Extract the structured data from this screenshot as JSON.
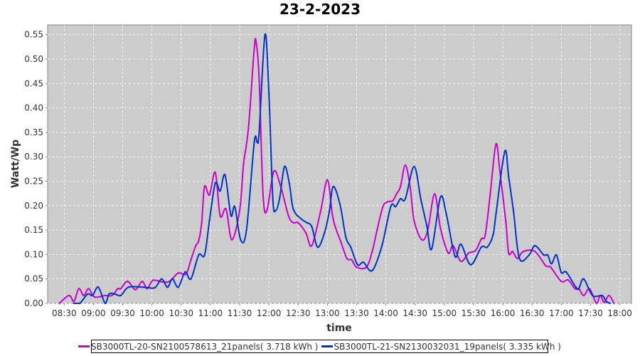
{
  "chart_data": {
    "type": "line",
    "title": "23-2-2023",
    "xlabel": "time",
    "ylabel": "Watt/Wp",
    "xlim": [
      "08:13",
      "18:12"
    ],
    "ylim": [
      0,
      0.57
    ],
    "grid": true,
    "legend_position": "bottom",
    "background": "#cccccc",
    "x_ticks": [
      "08:30",
      "09:00",
      "09:30",
      "10:00",
      "10:30",
      "11:00",
      "11:30",
      "12:00",
      "12:30",
      "13:00",
      "13:30",
      "14:00",
      "14:30",
      "15:00",
      "15:30",
      "16:00",
      "16:30",
      "17:00",
      "17:30",
      "18:00"
    ],
    "y_ticks": [
      "0.00",
      "0.05",
      "0.10",
      "0.15",
      "0.20",
      "0.25",
      "0.30",
      "0.35",
      "0.40",
      "0.45",
      "0.50",
      "0.55"
    ],
    "series": [
      {
        "name": "SB3000TL-20-SN2100578613_21panels( 3.718 kWh )",
        "color": "#cc00cc",
        "points": [
          [
            "08:25",
            0.0
          ],
          [
            "08:35",
            0.016
          ],
          [
            "08:40",
            0.004
          ],
          [
            "08:45",
            0.03
          ],
          [
            "08:50",
            0.016
          ],
          [
            "08:55",
            0.03
          ],
          [
            "09:01",
            0.013
          ],
          [
            "09:12",
            0.016
          ],
          [
            "09:19",
            0.016
          ],
          [
            "09:25",
            0.03
          ],
          [
            "09:28",
            0.03
          ],
          [
            "09:35",
            0.045
          ],
          [
            "09:43",
            0.028
          ],
          [
            "09:50",
            0.045
          ],
          [
            "09:55",
            0.03
          ],
          [
            "10:01",
            0.047
          ],
          [
            "10:10",
            0.044
          ],
          [
            "10:18",
            0.045
          ],
          [
            "10:27",
            0.062
          ],
          [
            "10:35",
            0.06
          ],
          [
            "10:40",
            0.089
          ],
          [
            "10:45",
            0.118
          ],
          [
            "10:48",
            0.128
          ],
          [
            "10:51",
            0.164
          ],
          [
            "10:54",
            0.239
          ],
          [
            "10:59",
            0.222
          ],
          [
            "11:05",
            0.268
          ],
          [
            "11:10",
            0.179
          ],
          [
            "11:16",
            0.193
          ],
          [
            "11:22",
            0.13
          ],
          [
            "11:30",
            0.19
          ],
          [
            "11:34",
            0.285
          ],
          [
            "11:39",
            0.358
          ],
          [
            "11:45",
            0.522
          ],
          [
            "11:47",
            0.533
          ],
          [
            "11:50",
            0.46
          ],
          [
            "11:54",
            0.223
          ],
          [
            "11:58",
            0.19
          ],
          [
            "12:05",
            0.27
          ],
          [
            "12:12",
            0.24
          ],
          [
            "12:20",
            0.18
          ],
          [
            "12:25",
            0.165
          ],
          [
            "12:30",
            0.165
          ],
          [
            "12:38",
            0.144
          ],
          [
            "12:44",
            0.118
          ],
          [
            "12:53",
            0.188
          ],
          [
            "13:00",
            0.253
          ],
          [
            "13:05",
            0.183
          ],
          [
            "13:08",
            0.157
          ],
          [
            "13:14",
            0.125
          ],
          [
            "13:20",
            0.092
          ],
          [
            "13:25",
            0.089
          ],
          [
            "13:30",
            0.074
          ],
          [
            "13:40",
            0.074
          ],
          [
            "13:46",
            0.106
          ],
          [
            "13:51",
            0.15
          ],
          [
            "13:57",
            0.198
          ],
          [
            "14:02",
            0.208
          ],
          [
            "14:07",
            0.21
          ],
          [
            "14:11",
            0.224
          ],
          [
            "14:15",
            0.239
          ],
          [
            "14:20",
            0.283
          ],
          [
            "14:25",
            0.237
          ],
          [
            "14:29",
            0.169
          ],
          [
            "14:37",
            0.13
          ],
          [
            "14:43",
            0.15
          ],
          [
            "14:50",
            0.224
          ],
          [
            "14:56",
            0.154
          ],
          [
            "15:04",
            0.103
          ],
          [
            "15:09",
            0.118
          ],
          [
            "15:17",
            0.086
          ],
          [
            "15:25",
            0.103
          ],
          [
            "15:32",
            0.108
          ],
          [
            "15:38",
            0.132
          ],
          [
            "15:42",
            0.14
          ],
          [
            "15:47",
            0.222
          ],
          [
            "15:53",
            0.326
          ],
          [
            "15:57",
            0.27
          ],
          [
            "16:03",
            0.169
          ],
          [
            "16:06",
            0.103
          ],
          [
            "16:10",
            0.106
          ],
          [
            "16:15",
            0.092
          ],
          [
            "16:21",
            0.106
          ],
          [
            "16:33",
            0.106
          ],
          [
            "16:44",
            0.077
          ],
          [
            "16:49",
            0.074
          ],
          [
            "17:00",
            0.045
          ],
          [
            "17:07",
            0.048
          ],
          [
            "17:14",
            0.03
          ],
          [
            "17:18",
            0.03
          ],
          [
            "17:23",
            0.016
          ],
          [
            "17:29",
            0.03
          ],
          [
            "17:36",
            0.0
          ],
          [
            "17:40",
            0.016
          ],
          [
            "17:44",
            0.002
          ],
          [
            "17:49",
            0.016
          ],
          [
            "17:54",
            0.0
          ]
        ]
      },
      {
        "name": "SB3000TL-21-SN2130032031_19panels( 3.335 kWh )",
        "color": "#0033cc",
        "points": [
          [
            "08:40",
            0.0
          ],
          [
            "08:46",
            0.0
          ],
          [
            "08:54",
            0.019
          ],
          [
            "08:59",
            0.016
          ],
          [
            "09:05",
            0.033
          ],
          [
            "09:12",
            0.0
          ],
          [
            "09:16",
            0.019
          ],
          [
            "09:22",
            0.019
          ],
          [
            "09:28",
            0.016
          ],
          [
            "09:36",
            0.033
          ],
          [
            "09:52",
            0.033
          ],
          [
            "10:03",
            0.032
          ],
          [
            "10:10",
            0.05
          ],
          [
            "10:16",
            0.033
          ],
          [
            "10:21",
            0.05
          ],
          [
            "10:27",
            0.033
          ],
          [
            "10:34",
            0.064
          ],
          [
            "10:40",
            0.05
          ],
          [
            "10:48",
            0.099
          ],
          [
            "10:54",
            0.099
          ],
          [
            "10:59",
            0.169
          ],
          [
            "11:05",
            0.246
          ],
          [
            "11:10",
            0.23
          ],
          [
            "11:15",
            0.263
          ],
          [
            "11:21",
            0.18
          ],
          [
            "11:25",
            0.198
          ],
          [
            "11:31",
            0.13
          ],
          [
            "11:37",
            0.15
          ],
          [
            "11:45",
            0.33
          ],
          [
            "11:48",
            0.33
          ],
          [
            "11:50",
            0.35
          ],
          [
            "11:56",
            0.55
          ],
          [
            "12:00",
            0.43
          ],
          [
            "12:04",
            0.215
          ],
          [
            "12:07",
            0.19
          ],
          [
            "12:11",
            0.215
          ],
          [
            "12:16",
            0.28
          ],
          [
            "12:21",
            0.245
          ],
          [
            "12:25",
            0.193
          ],
          [
            "12:33",
            0.173
          ],
          [
            "12:39",
            0.165
          ],
          [
            "12:44",
            0.157
          ],
          [
            "12:50",
            0.115
          ],
          [
            "12:57",
            0.144
          ],
          [
            "13:02",
            0.188
          ],
          [
            "13:06",
            0.239
          ],
          [
            "13:13",
            0.202
          ],
          [
            "13:19",
            0.135
          ],
          [
            "13:24",
            0.115
          ],
          [
            "13:31",
            0.079
          ],
          [
            "13:37",
            0.084
          ],
          [
            "13:46",
            0.067
          ],
          [
            "13:56",
            0.118
          ],
          [
            "14:05",
            0.198
          ],
          [
            "14:10",
            0.198
          ],
          [
            "14:15",
            0.214
          ],
          [
            "14:20",
            0.214
          ],
          [
            "14:29",
            0.28
          ],
          [
            "14:36",
            0.212
          ],
          [
            "14:42",
            0.159
          ],
          [
            "14:47",
            0.111
          ],
          [
            "14:56",
            0.217
          ],
          [
            "15:02",
            0.183
          ],
          [
            "15:11",
            0.096
          ],
          [
            "15:17",
            0.121
          ],
          [
            "15:27",
            0.079
          ],
          [
            "15:38",
            0.115
          ],
          [
            "15:44",
            0.115
          ],
          [
            "15:50",
            0.14
          ],
          [
            "15:53",
            0.183
          ],
          [
            "16:02",
            0.311
          ],
          [
            "16:06",
            0.259
          ],
          [
            "16:11",
            0.188
          ],
          [
            "16:17",
            0.092
          ],
          [
            "16:27",
            0.099
          ],
          [
            "16:33",
            0.118
          ],
          [
            "16:42",
            0.099
          ],
          [
            "16:46",
            0.099
          ],
          [
            "16:50",
            0.081
          ],
          [
            "16:55",
            0.099
          ],
          [
            "17:00",
            0.063
          ],
          [
            "17:05",
            0.064
          ],
          [
            "17:15",
            0.033
          ],
          [
            "17:18",
            0.03
          ],
          [
            "17:23",
            0.05
          ],
          [
            "17:32",
            0.016
          ],
          [
            "17:42",
            0.016
          ],
          [
            "17:46",
            0.004
          ],
          [
            "17:50",
            0.0
          ]
        ]
      }
    ]
  }
}
